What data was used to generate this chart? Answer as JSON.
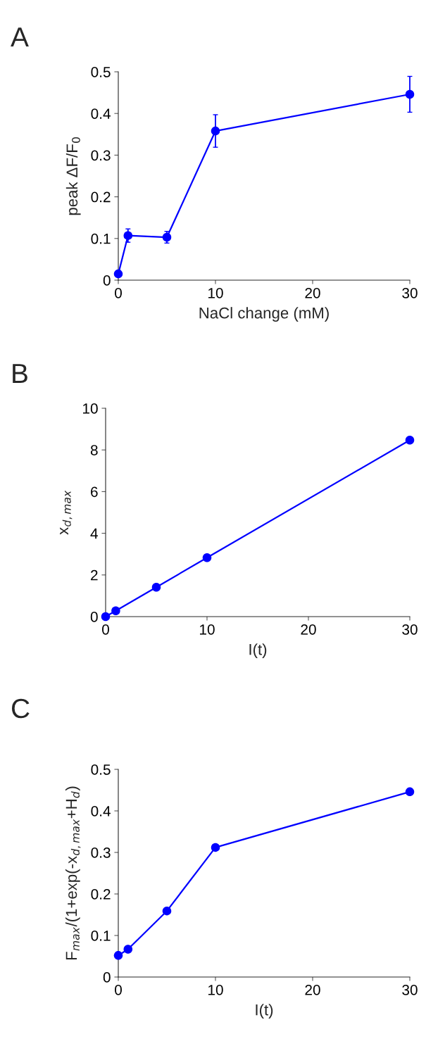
{
  "chart_data": [
    {
      "type": "line",
      "title": "A",
      "xlabel": "NaCl change (mM)",
      "ylabel": "peak ΔF/F$_{0}$",
      "x": [
        0,
        1,
        5,
        10,
        30
      ],
      "xlim": [
        0,
        30
      ],
      "xticks": [
        0,
        10,
        20,
        30
      ],
      "ylim": [
        0,
        0.5
      ],
      "yticks": [
        0,
        0.1,
        0.2,
        0.3,
        0.4,
        0.5
      ],
      "marker": "circle",
      "line_style": "solid",
      "grid": false,
      "legend": false,
      "series": [
        {
          "color": "#0000ff",
          "values": [
            0.015,
            0.107,
            0.103,
            0.358,
            0.446
          ],
          "errors": [
            null,
            0.016,
            0.014,
            0.039,
            0.043
          ]
        }
      ]
    },
    {
      "type": "line",
      "title": "B",
      "xlabel": "I(t)",
      "ylabel": "x$_{d,max}$",
      "x": [
        0,
        1,
        5,
        10,
        30
      ],
      "xlim": [
        0,
        30
      ],
      "xticks": [
        0,
        10,
        20,
        30
      ],
      "ylim": [
        0,
        10
      ],
      "yticks": [
        0,
        2,
        4,
        6,
        8,
        10
      ],
      "marker": "circle",
      "line_style": "solid",
      "grid": false,
      "legend": false,
      "series": [
        {
          "color": "#0000ff",
          "values": [
            0.0,
            0.28,
            1.41,
            2.83,
            8.47
          ]
        }
      ]
    },
    {
      "type": "line",
      "title": "C",
      "xlabel": "I(t)",
      "ylabel": "F$_{max}$/(1+exp(-x$_{d,max}$+H$_{d}$)",
      "x": [
        0,
        1,
        5,
        10,
        30
      ],
      "xlim": [
        0,
        30
      ],
      "xticks": [
        0,
        10,
        20,
        30
      ],
      "ylim": [
        0,
        0.5
      ],
      "yticks": [
        0,
        0.1,
        0.2,
        0.3,
        0.4,
        0.5
      ],
      "marker": "circle",
      "line_style": "solid",
      "grid": false,
      "legend": false,
      "series": [
        {
          "color": "#0000ff",
          "values": [
            0.052,
            0.067,
            0.159,
            0.312,
            0.446
          ]
        }
      ]
    }
  ]
}
